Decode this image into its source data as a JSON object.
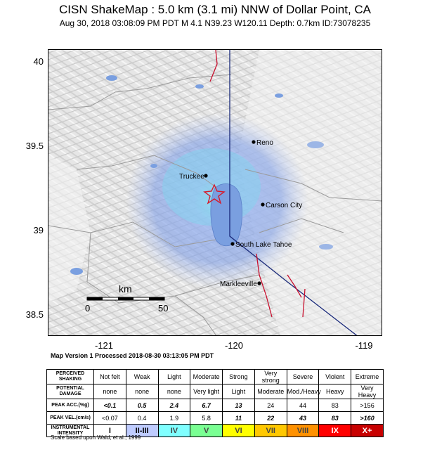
{
  "header": {
    "title": "CISN ShakeMap : 5.0 km (3.1 mi) NNW of Dollar Point, CA",
    "subtitle": "Aug 30, 2018 03:08:09 PM PDT   M 4.1   N39.23 W120.11   Depth: 0.7km   ID:73078235"
  },
  "map": {
    "lat_ticks": [
      "40",
      "39.5",
      "39",
      "38.5"
    ],
    "lon_ticks": [
      "-121",
      "-120",
      "-119"
    ],
    "cities": [
      "Reno",
      "Truckee",
      "Carson City",
      "South Lake Tahoe",
      "Markleeville"
    ],
    "scalebar": {
      "unit": "km",
      "zero": "0",
      "max": "50"
    },
    "epicenter_icon": "star-icon",
    "colors": {
      "shaking": "#7f9ee6",
      "lake": "#7a9fe0",
      "fault": "#c8102e",
      "border": "#1a2a7a"
    }
  },
  "footer": {
    "version": "Map Version 1 Processed 2018-08-30 03:13:05 PM PDT",
    "scale_note": "Scale based upon Wald, et al.; 1999"
  },
  "legend": {
    "headers": {
      "shaking": "PERCEIVED SHAKING",
      "damage": "POTENTIAL DAMAGE",
      "acc": "PEAK ACC.(%g)",
      "vel": "PEAK VEL.(cm/s)",
      "intensity": "INSTRUMENTAL INTENSITY"
    },
    "shaking": [
      "Not felt",
      "Weak",
      "Light",
      "Moderate",
      "Strong",
      "Very strong",
      "Severe",
      "Violent",
      "Extreme"
    ],
    "damage": [
      "none",
      "none",
      "none",
      "Very light",
      "Light",
      "Moderate",
      "Mod./Heavy",
      "Heavy",
      "Very Heavy"
    ],
    "acc": [
      "<0.1",
      "0.5",
      "2.4",
      "6.7",
      "13",
      "24",
      "44",
      "83",
      ">156"
    ],
    "vel": [
      "<0.07",
      "0.4",
      "1.9",
      "5.8",
      "11",
      "22",
      "43",
      "83",
      ">160"
    ],
    "intensity": [
      "I",
      "II-III",
      "IV",
      "V",
      "VI",
      "VII",
      "VIII",
      "IX",
      "X+"
    ],
    "intensity_colors": [
      "#ffffff",
      "#bfccff",
      "#80ffff",
      "#7aff93",
      "#ffff00",
      "#ffc800",
      "#ff9100",
      "#ff0000",
      "#c80000"
    ]
  }
}
